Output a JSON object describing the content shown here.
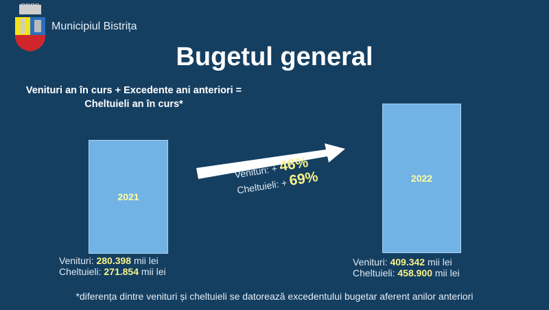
{
  "header": {
    "brand": "Municipiul Bistrița",
    "title": "Bugetul general"
  },
  "formula": "Venituri an în curs + Excedente ani anteriori = Cheltuieli an în curs*",
  "years": [
    {
      "year": "2021",
      "venituri_label": "Venituri: ",
      "venituri": "280.398",
      "cheltuieli_label": "Cheltuieli: ",
      "cheltuieli": "271.854",
      "unit": " mii lei"
    },
    {
      "year": "2022",
      "venituri_label": "Venituri: ",
      "venituri": "409.342",
      "cheltuieli_label": "Cheltuieli: ",
      "cheltuieli": "458.900",
      "unit": " mii lei"
    }
  ],
  "growth": {
    "venituri_label": "Venituri: + ",
    "venituri": "46%",
    "cheltuieli_label": "Cheltuieli: + ",
    "cheltuieli": "69%"
  },
  "note": "*diferența dintre venituri și cheltuieli se datorează excedentului bugetar aferent anilor anteriori",
  "colors": {
    "background": "#153f61",
    "bar": "#72b3e6",
    "highlight": "#f7f28a"
  }
}
